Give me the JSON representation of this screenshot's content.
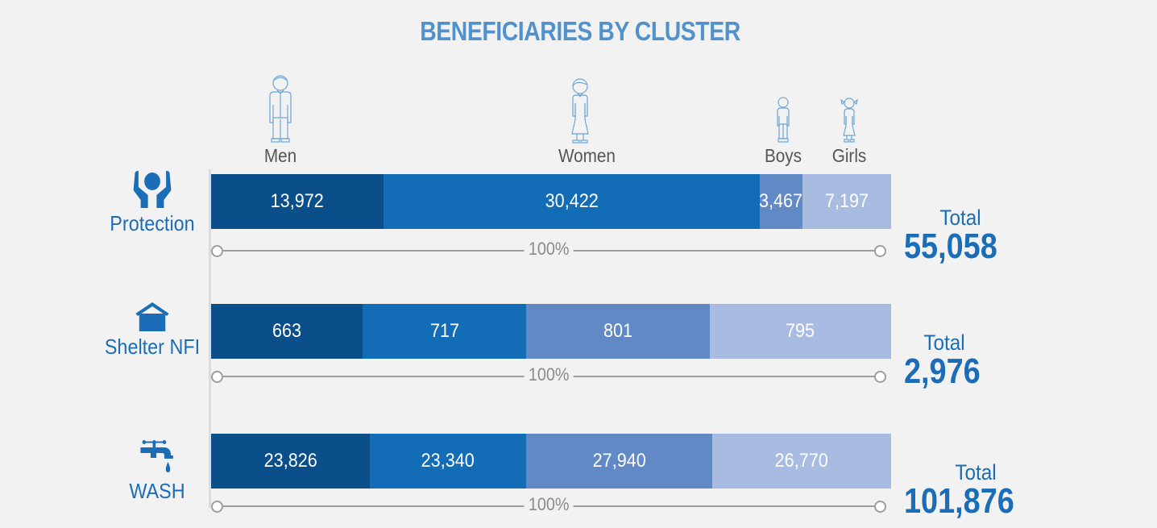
{
  "title": "BENEFICIARIES BY CLUSTER",
  "colors": {
    "men": "#0b4f8a",
    "women": "#126db6",
    "boys": "#6089c6",
    "girls": "#a8bbe1",
    "accent": "#1a6db6",
    "title": "#5292cc"
  },
  "legend": {
    "men": "Men",
    "women": "Women",
    "boys": "Boys",
    "girls": "Girls"
  },
  "percent_label": "100%",
  "total_label": "Total",
  "chart_data": {
    "type": "bar",
    "orientation": "horizontal",
    "stacked": true,
    "normalized": true,
    "title": "BENEFICIARIES BY CLUSTER",
    "categories": [
      "Protection",
      "Shelter NFI",
      "WASH"
    ],
    "series": [
      {
        "name": "Men",
        "values": [
          13972,
          663,
          23826
        ]
      },
      {
        "name": "Women",
        "values": [
          30422,
          717,
          23340
        ]
      },
      {
        "name": "Boys",
        "values": [
          3467,
          801,
          27940
        ]
      },
      {
        "name": "Girls",
        "values": [
          7197,
          795,
          26770
        ]
      }
    ],
    "labels": [
      [
        "13,972",
        "30,422",
        "3,467",
        "7,197"
      ],
      [
        "663",
        "717",
        "801",
        "795"
      ],
      [
        "23,826",
        "23,340",
        "27,940",
        "26,770"
      ]
    ],
    "totals": [
      55058,
      2976,
      101876
    ],
    "total_labels": [
      "55,058",
      "2,976",
      "101,876"
    ],
    "icons": [
      "protection-hands-icon",
      "shelter-house-icon",
      "wash-tap-icon"
    ],
    "legend_position": "top"
  }
}
